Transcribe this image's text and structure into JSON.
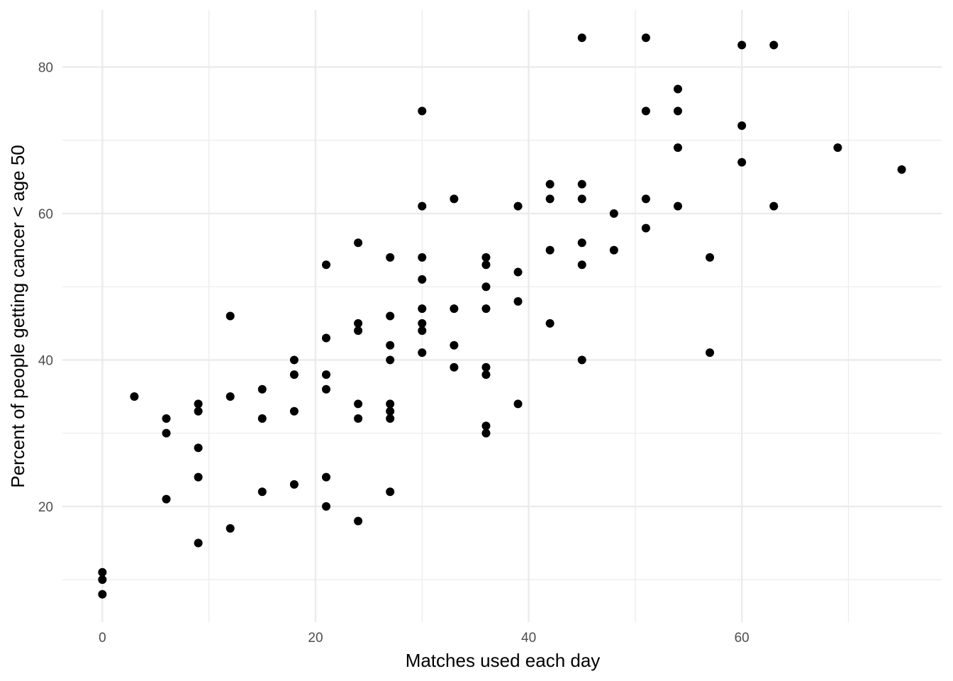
{
  "chart_data": {
    "type": "scatter",
    "title": "",
    "xlabel": "Matches used each day",
    "ylabel": "Percent of people getting cancer < age 50",
    "xlim": [
      -3.75,
      78.75
    ],
    "ylim": [
      4.2,
      87.8
    ],
    "x_ticks": [
      0,
      20,
      40,
      60
    ],
    "x_tick_labels": [
      "0",
      "20",
      "40",
      "60"
    ],
    "x_minor_ticks": [
      10,
      30,
      50,
      70
    ],
    "y_ticks": [
      20,
      40,
      60,
      80
    ],
    "y_tick_labels": [
      "20",
      "40",
      "60",
      "80"
    ],
    "y_minor_ticks": [
      10,
      30,
      50,
      70
    ],
    "grid": true,
    "theme": "minimal",
    "point_color": "#000000",
    "grid_color": "#ebebeb",
    "points": [
      {
        "x": 0,
        "y": 11
      },
      {
        "x": 0,
        "y": 10
      },
      {
        "x": 0,
        "y": 8
      },
      {
        "x": 3,
        "y": 35
      },
      {
        "x": 6,
        "y": 32
      },
      {
        "x": 6,
        "y": 30
      },
      {
        "x": 6,
        "y": 21
      },
      {
        "x": 9,
        "y": 34
      },
      {
        "x": 9,
        "y": 33
      },
      {
        "x": 9,
        "y": 28
      },
      {
        "x": 9,
        "y": 24
      },
      {
        "x": 9,
        "y": 15
      },
      {
        "x": 12,
        "y": 46
      },
      {
        "x": 12,
        "y": 35
      },
      {
        "x": 12,
        "y": 17
      },
      {
        "x": 15,
        "y": 36
      },
      {
        "x": 15,
        "y": 32
      },
      {
        "x": 15,
        "y": 22
      },
      {
        "x": 18,
        "y": 40
      },
      {
        "x": 18,
        "y": 38
      },
      {
        "x": 18,
        "y": 33
      },
      {
        "x": 18,
        "y": 23
      },
      {
        "x": 21,
        "y": 53
      },
      {
        "x": 21,
        "y": 43
      },
      {
        "x": 21,
        "y": 38
      },
      {
        "x": 21,
        "y": 36
      },
      {
        "x": 21,
        "y": 24
      },
      {
        "x": 21,
        "y": 20
      },
      {
        "x": 24,
        "y": 56
      },
      {
        "x": 24,
        "y": 45
      },
      {
        "x": 24,
        "y": 44
      },
      {
        "x": 24,
        "y": 34
      },
      {
        "x": 24,
        "y": 32
      },
      {
        "x": 24,
        "y": 18
      },
      {
        "x": 27,
        "y": 54
      },
      {
        "x": 27,
        "y": 46
      },
      {
        "x": 27,
        "y": 42
      },
      {
        "x": 27,
        "y": 40
      },
      {
        "x": 27,
        "y": 34
      },
      {
        "x": 27,
        "y": 33
      },
      {
        "x": 27,
        "y": 32
      },
      {
        "x": 27,
        "y": 22
      },
      {
        "x": 30,
        "y": 74
      },
      {
        "x": 30,
        "y": 61
      },
      {
        "x": 30,
        "y": 54
      },
      {
        "x": 30,
        "y": 51
      },
      {
        "x": 30,
        "y": 47
      },
      {
        "x": 30,
        "y": 45
      },
      {
        "x": 30,
        "y": 44
      },
      {
        "x": 30,
        "y": 41
      },
      {
        "x": 33,
        "y": 62
      },
      {
        "x": 33,
        "y": 47
      },
      {
        "x": 33,
        "y": 42
      },
      {
        "x": 33,
        "y": 39
      },
      {
        "x": 36,
        "y": 54
      },
      {
        "x": 36,
        "y": 53
      },
      {
        "x": 36,
        "y": 50
      },
      {
        "x": 36,
        "y": 47
      },
      {
        "x": 36,
        "y": 39
      },
      {
        "x": 36,
        "y": 38
      },
      {
        "x": 36,
        "y": 31
      },
      {
        "x": 36,
        "y": 30
      },
      {
        "x": 39,
        "y": 61
      },
      {
        "x": 39,
        "y": 52
      },
      {
        "x": 39,
        "y": 48
      },
      {
        "x": 39,
        "y": 34
      },
      {
        "x": 42,
        "y": 64
      },
      {
        "x": 42,
        "y": 62
      },
      {
        "x": 42,
        "y": 55
      },
      {
        "x": 42,
        "y": 45
      },
      {
        "x": 45,
        "y": 84
      },
      {
        "x": 45,
        "y": 64
      },
      {
        "x": 45,
        "y": 62
      },
      {
        "x": 45,
        "y": 56
      },
      {
        "x": 45,
        "y": 53
      },
      {
        "x": 45,
        "y": 40
      },
      {
        "x": 48,
        "y": 60
      },
      {
        "x": 48,
        "y": 55
      },
      {
        "x": 51,
        "y": 84
      },
      {
        "x": 51,
        "y": 74
      },
      {
        "x": 51,
        "y": 62
      },
      {
        "x": 51,
        "y": 58
      },
      {
        "x": 54,
        "y": 77
      },
      {
        "x": 54,
        "y": 74
      },
      {
        "x": 54,
        "y": 69
      },
      {
        "x": 54,
        "y": 61
      },
      {
        "x": 57,
        "y": 54
      },
      {
        "x": 57,
        "y": 41
      },
      {
        "x": 60,
        "y": 83
      },
      {
        "x": 60,
        "y": 72
      },
      {
        "x": 60,
        "y": 67
      },
      {
        "x": 63,
        "y": 83
      },
      {
        "x": 63,
        "y": 61
      },
      {
        "x": 69,
        "y": 69
      },
      {
        "x": 75,
        "y": 66
      }
    ]
  }
}
